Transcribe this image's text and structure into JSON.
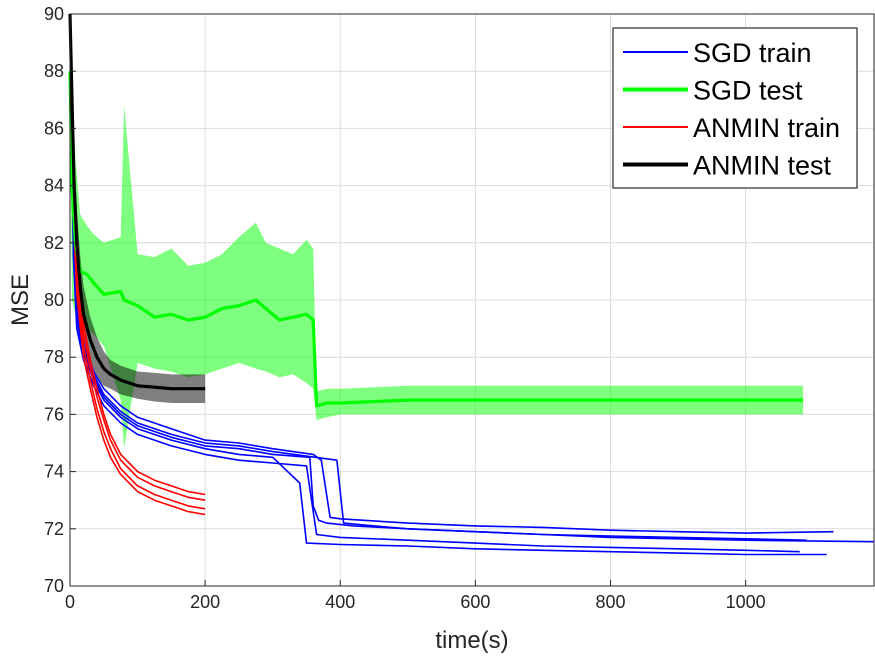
{
  "chart_data": {
    "type": "line",
    "title": "",
    "xlabel": "time(s)",
    "ylabel": "MSE",
    "xlim": [
      0,
      1190
    ],
    "ylim": [
      70,
      90
    ],
    "xticks": [
      0,
      200,
      400,
      600,
      800,
      1000
    ],
    "yticks": [
      70,
      72,
      74,
      76,
      78,
      80,
      82,
      84,
      86,
      88,
      90
    ],
    "grid": true,
    "legend_position": "top-right",
    "series": [
      {
        "name": "SGD train",
        "color": "#0000ff",
        "style": "thin-multi-run",
        "runs": [
          {
            "x": [
              0,
              5,
              10,
              20,
              35,
              50,
              75,
              100,
              150,
              200,
              250,
              300,
              355,
              360,
              368,
              380,
              420,
              500,
              600,
              700,
              800,
              900,
              1000,
              1090
            ],
            "y": [
              90,
              82,
              79.5,
              78.3,
              77.3,
              76.6,
              76.0,
              75.6,
              75.2,
              74.9,
              74.8,
              74.6,
              74.5,
              72.8,
              72.3,
              72.2,
              72.1,
              72.0,
              71.9,
              71.8,
              71.75,
              71.7,
              71.65,
              71.6
            ]
          },
          {
            "x": [
              0,
              5,
              10,
              20,
              35,
              50,
              75,
              100,
              150,
              200,
              250,
              300,
              360,
              372,
              385,
              400,
              500,
              600,
              700,
              800,
              900,
              1000,
              1130
            ],
            "y": [
              90,
              83,
              80,
              78.6,
              77.5,
              76.9,
              76.3,
              75.9,
              75.5,
              75.1,
              75.0,
              74.8,
              74.6,
              74.4,
              72.4,
              72.35,
              72.2,
              72.1,
              72.05,
              71.95,
              71.9,
              71.85,
              71.9
            ]
          },
          {
            "x": [
              0,
              5,
              10,
              20,
              35,
              50,
              75,
              100,
              150,
              200,
              250,
              300,
              350,
              365,
              400,
              500,
              600,
              700,
              800,
              900,
              1000,
              1080
            ],
            "y": [
              90,
              81.5,
              79,
              77.9,
              77.0,
              76.3,
              75.7,
              75.3,
              74.9,
              74.6,
              74.4,
              74.3,
              74.2,
              71.8,
              71.7,
              71.6,
              71.5,
              71.4,
              71.35,
              71.3,
              71.25,
              71.2
            ]
          },
          {
            "x": [
              0,
              5,
              10,
              20,
              35,
              50,
              75,
              100,
              150,
              200,
              250,
              300,
              395,
              405,
              450,
              500,
              600,
              700,
              800,
              900,
              1000,
              1190
            ],
            "y": [
              90,
              82.5,
              79.8,
              78.4,
              77.4,
              76.7,
              76.1,
              75.7,
              75.3,
              75.0,
              74.9,
              74.7,
              74.4,
              72.2,
              72.1,
              72.0,
              71.9,
              71.8,
              71.7,
              71.65,
              71.6,
              71.55
            ]
          },
          {
            "x": [
              0,
              5,
              10,
              20,
              35,
              50,
              75,
              100,
              150,
              200,
              250,
              300,
              340,
              350,
              400,
              500,
              600,
              700,
              800,
              900,
              1000,
              1120
            ],
            "y": [
              90,
              82,
              79.3,
              78.1,
              77.2,
              76.5,
              75.9,
              75.5,
              75.1,
              74.8,
              74.6,
              74.5,
              73.6,
              71.5,
              71.45,
              71.4,
              71.3,
              71.25,
              71.2,
              71.15,
              71.1,
              71.1
            ]
          }
        ]
      },
      {
        "name": "SGD test",
        "color": "#00ff00",
        "style": "thick-mean-with-band",
        "x": [
          0,
          3,
          8,
          15,
          25,
          35,
          50,
          75,
          80,
          100,
          125,
          150,
          175,
          200,
          225,
          250,
          275,
          290,
          310,
          330,
          350,
          360,
          365,
          380,
          400,
          500,
          600,
          700,
          730,
          800,
          900,
          1000,
          1085
        ],
        "y": [
          88,
          84,
          82,
          81,
          80.9,
          80.6,
          80.2,
          80.3,
          80.0,
          79.8,
          79.4,
          79.5,
          79.3,
          79.4,
          79.7,
          79.8,
          80.0,
          79.7,
          79.3,
          79.4,
          79.5,
          79.3,
          76.3,
          76.4,
          76.4,
          76.5,
          76.5,
          76.5,
          76.5,
          76.5,
          76.5,
          76.5,
          76.5
        ],
        "upper": [
          90,
          88,
          85,
          83,
          82.6,
          82.3,
          82.0,
          82.2,
          86.8,
          81.6,
          81.5,
          81.8,
          81.2,
          81.3,
          81.6,
          82.2,
          82.7,
          82.0,
          81.8,
          81.6,
          82.1,
          81.8,
          76.8,
          76.9,
          76.9,
          77.0,
          77.0,
          77.0,
          77.0,
          77.0,
          77.0,
          77.0,
          77.0
        ],
        "lower": [
          86,
          80,
          79.5,
          79.2,
          79.0,
          78.8,
          78.4,
          76.5,
          74.8,
          77.8,
          77.6,
          77.5,
          77.3,
          77.4,
          77.6,
          77.8,
          77.6,
          77.5,
          77.3,
          77.4,
          77.1,
          76.9,
          75.8,
          75.9,
          76.0,
          76.0,
          76.0,
          76.0,
          76.0,
          76.0,
          76.0,
          76.0,
          76.0
        ]
      },
      {
        "name": "ANMIN train",
        "color": "#ff0000",
        "style": "thin-multi-run",
        "runs": [
          {
            "x": [
              0,
              5,
              10,
              20,
              30,
              40,
              50,
              60,
              75,
              100,
              125,
              150,
              175,
              200
            ],
            "y": [
              90,
              84,
              81,
              78.8,
              77.6,
              76.6,
              75.8,
              75.1,
              74.4,
              73.8,
              73.5,
              73.3,
              73.1,
              73.0
            ]
          },
          {
            "x": [
              0,
              5,
              10,
              20,
              30,
              40,
              50,
              60,
              75,
              100,
              125,
              150,
              175,
              200
            ],
            "y": [
              90,
              83.5,
              80.6,
              78.4,
              77.2,
              76.2,
              75.4,
              74.8,
              74.1,
              73.5,
              73.2,
              73.0,
              72.8,
              72.7
            ]
          },
          {
            "x": [
              0,
              5,
              10,
              20,
              30,
              40,
              50,
              60,
              75,
              100,
              125,
              150,
              175,
              200
            ],
            "y": [
              90,
              84.5,
              81.5,
              79.2,
              77.9,
              76.9,
              76.0,
              75.3,
              74.6,
              74.0,
              73.7,
              73.5,
              73.3,
              73.2
            ]
          },
          {
            "x": [
              0,
              5,
              10,
              20,
              30,
              40,
              50,
              60,
              75,
              100,
              125,
              150,
              175,
              200
            ],
            "y": [
              90,
              83,
              80.2,
              78.0,
              76.9,
              75.9,
              75.1,
              74.5,
              73.9,
              73.3,
              73.0,
              72.8,
              72.6,
              72.5
            ]
          }
        ]
      },
      {
        "name": "ANMIN test",
        "color": "#000000",
        "style": "thick-mean-with-band",
        "x": [
          0,
          3,
          6,
          10,
          15,
          20,
          30,
          40,
          50,
          60,
          75,
          100,
          125,
          150,
          175,
          200
        ],
        "y": [
          90,
          87,
          84,
          82.0,
          80.5,
          79.5,
          78.6,
          78.0,
          77.6,
          77.4,
          77.2,
          77.0,
          76.95,
          76.9,
          76.9,
          76.9
        ],
        "upper": [
          90,
          88.5,
          85.5,
          83.2,
          81.6,
          80.5,
          79.4,
          78.7,
          78.2,
          77.9,
          77.7,
          77.5,
          77.45,
          77.4,
          77.4,
          77.4
        ],
        "lower": [
          90,
          85.5,
          82.5,
          80.8,
          79.4,
          78.5,
          77.8,
          77.3,
          77.0,
          76.9,
          76.7,
          76.55,
          76.45,
          76.4,
          76.4,
          76.4
        ]
      }
    ]
  }
}
